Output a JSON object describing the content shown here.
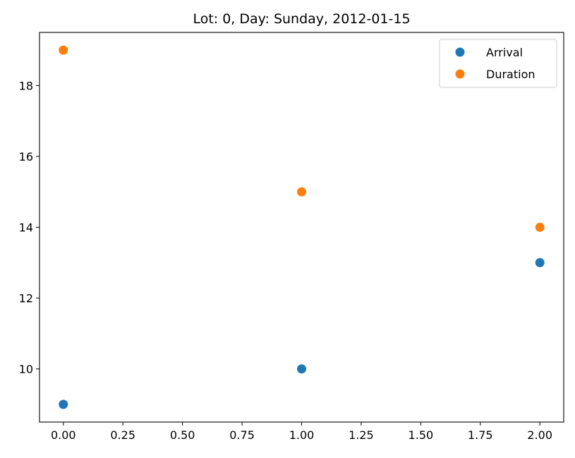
{
  "chart_data": {
    "type": "scatter",
    "title": "Lot: 0, Day: Sunday, 2012-01-15",
    "xlabel": "",
    "ylabel": "",
    "xlim": [
      -0.1,
      2.1
    ],
    "ylim": [
      8.5,
      19.5
    ],
    "x_ticks": [
      0.0,
      0.25,
      0.5,
      0.75,
      1.0,
      1.25,
      1.5,
      1.75,
      2.0
    ],
    "x_tick_labels": [
      "0.00",
      "0.25",
      "0.50",
      "0.75",
      "1.00",
      "1.25",
      "1.50",
      "1.75",
      "2.00"
    ],
    "y_ticks": [
      10,
      12,
      14,
      16,
      18
    ],
    "y_tick_labels": [
      "10",
      "12",
      "14",
      "16",
      "18"
    ],
    "grid": false,
    "legend_position": "top-right",
    "series": [
      {
        "name": "Arrival",
        "color": "#1f77b4",
        "points": [
          {
            "x": 0,
            "y": 9
          },
          {
            "x": 1,
            "y": 10
          },
          {
            "x": 2,
            "y": 13
          }
        ]
      },
      {
        "name": "Duration",
        "color": "#ff7f0e",
        "points": [
          {
            "x": 0,
            "y": 19
          },
          {
            "x": 1,
            "y": 15
          },
          {
            "x": 2,
            "y": 14
          }
        ]
      }
    ]
  }
}
